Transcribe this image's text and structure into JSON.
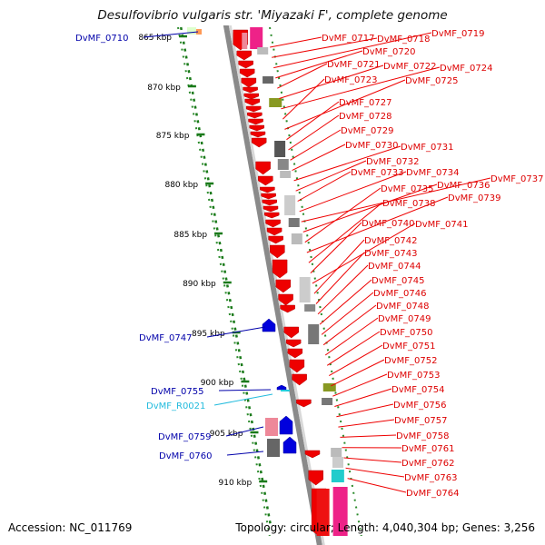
{
  "title": "Desulfovibrio vulgaris str. 'Miyazaki F', complete genome",
  "accession": "Accession: NC_011769",
  "summary": "Topology: circular; Length: 4,040,304 bp; Genes: 3,256",
  "colors": {
    "forward_gene": "#0000dd",
    "reverse_gene": "#ee0000",
    "rna_gene": "#11bbdd",
    "scale_ticks": "#1a7a1a",
    "backbone": "#808080"
  },
  "scale": {
    "unit": "kbp",
    "ticks": [
      "865 kbp",
      "870 kbp",
      "875 kbp",
      "880 kbp",
      "885 kbp",
      "890 kbp",
      "895 kbp",
      "900 kbp",
      "905 kbp",
      "910 kbp"
    ]
  },
  "left_labels": [
    {
      "text": "DvMF_0710",
      "color": "#0000aa"
    },
    {
      "text": "DvMF_0747",
      "color": "#0000aa"
    },
    {
      "text": "DvMF_0755",
      "color": "#0000aa"
    },
    {
      "text": "DvMF_R0021",
      "color": "#22bbdd"
    },
    {
      "text": "DvMF_0759",
      "color": "#0000aa"
    },
    {
      "text": "DvMF_0760",
      "color": "#0000aa"
    }
  ],
  "right_labels": [
    "DvMF_0717",
    "DvMF_0718",
    "DvMF_0719",
    "DvMF_0720",
    "DvMF_0721",
    "DvMF_0722",
    "DvMF_0724",
    "DvMF_0723",
    "DvMF_0725",
    "DvMF_0727",
    "DvMF_0728",
    "DvMF_0729",
    "DvMF_0730",
    "DvMF_0731",
    "DvMF_0732",
    "DvMF_0733",
    "DvMF_0734",
    "DvMF_0737",
    "DvMF_0736",
    "DvMF_0735",
    "DvMF_0739",
    "DvMF_0738",
    "DvMF_0740",
    "DvMF_0741",
    "DvMF_0742",
    "DvMF_0743",
    "DvMF_0744",
    "DvMF_0745",
    "DvMF_0746",
    "DvMF_0748",
    "DvMF_0749",
    "DvMF_0750",
    "DvMF_0751",
    "DvMF_0752",
    "DvMF_0753",
    "DvMF_0754",
    "DvMF_0756",
    "DvMF_0757",
    "DvMF_0758",
    "DvMF_0761",
    "DvMF_0762",
    "DvMF_0763",
    "DvMF_0764"
  ]
}
